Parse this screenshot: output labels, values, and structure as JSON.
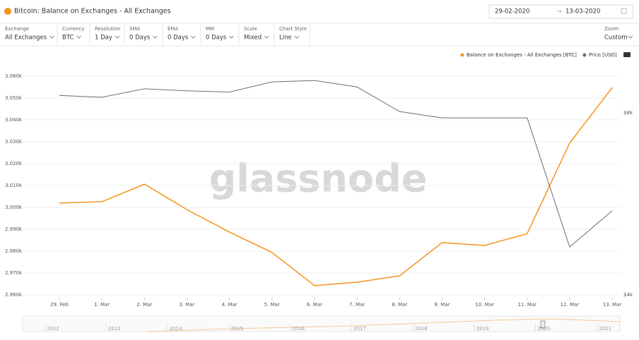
{
  "header": {
    "title": "Bitcoin: Balance on Exchanges - All Exchanges",
    "date_from": "29-02-2020",
    "date_to": "13-03-2020"
  },
  "controls": [
    {
      "label": "Exchange",
      "value": "All Exchanges"
    },
    {
      "label": "Currency",
      "value": "BTC"
    },
    {
      "label": "Resolution",
      "value": "1 Day"
    },
    {
      "label": "SMA",
      "value": "0 Days"
    },
    {
      "label": "EMA",
      "value": "0 Days"
    },
    {
      "label": "MM",
      "value": "0 Days"
    },
    {
      "label": "Scale",
      "value": "Mixed"
    },
    {
      "label": "Chart Style",
      "value": "Line"
    }
  ],
  "zoom": {
    "label": "Zoom",
    "value": "Custom"
  },
  "watermark": "glassnode",
  "chart_data": {
    "type": "line",
    "grid": true,
    "y2_log": true,
    "categories": [
      "29. Feb",
      "1. Mar",
      "2. Mar",
      "3. Mar",
      "4. Mar",
      "5. Mar",
      "6. Mar",
      "7. Mar",
      "8. Mar",
      "9. Mar",
      "10. Mar",
      "11. Mar",
      "12. Mar",
      "13. Mar"
    ],
    "series": [
      {
        "name": "Balance on Exchanges - All Exchanges [BTC]",
        "color": "#f7931a",
        "values": [
          3002,
          3002.6,
          3010.6,
          2999,
          2988.7,
          2979.4,
          2964.2,
          2965.8,
          2968.7,
          2983.9,
          2982.6,
          2988,
          3029.4,
          3054.8
        ]
      },
      {
        "name": "Price [USD]",
        "color": "#6b6b6b",
        "axis": "y2",
        "values": [
          8550,
          8490,
          8770,
          8700,
          8660,
          9000,
          9050,
          8830,
          8040,
          7850,
          7850,
          7850,
          4800,
          5510
        ]
      }
    ],
    "ylim": [
      2960,
      3060
    ],
    "yticks": [
      {
        "value": 2960,
        "label": "2.960k"
      },
      {
        "value": 2970,
        "label": "2.970k"
      },
      {
        "value": 2980,
        "label": "2.980k"
      },
      {
        "value": 2990,
        "label": "2.990k"
      },
      {
        "value": 3000,
        "label": "3.000k"
      },
      {
        "value": 3010,
        "label": "3.010k"
      },
      {
        "value": 3020,
        "label": "3.020k"
      },
      {
        "value": 3030,
        "label": "3.030k"
      },
      {
        "value": 3040,
        "label": "3.040k"
      },
      {
        "value": 3050,
        "label": "3.050k"
      },
      {
        "value": 3060,
        "label": "3.060k"
      }
    ],
    "y2lim": [
      4000,
      9200
    ],
    "y2ticks": [
      {
        "value": 8000,
        "label": "$8k"
      },
      {
        "value": 4000,
        "label": "$4k"
      }
    ]
  },
  "navigator": {
    "years": [
      "2012",
      "2013",
      "2014",
      "2015",
      "2016",
      "2017",
      "2018",
      "2019",
      "2020",
      "2021"
    ]
  }
}
